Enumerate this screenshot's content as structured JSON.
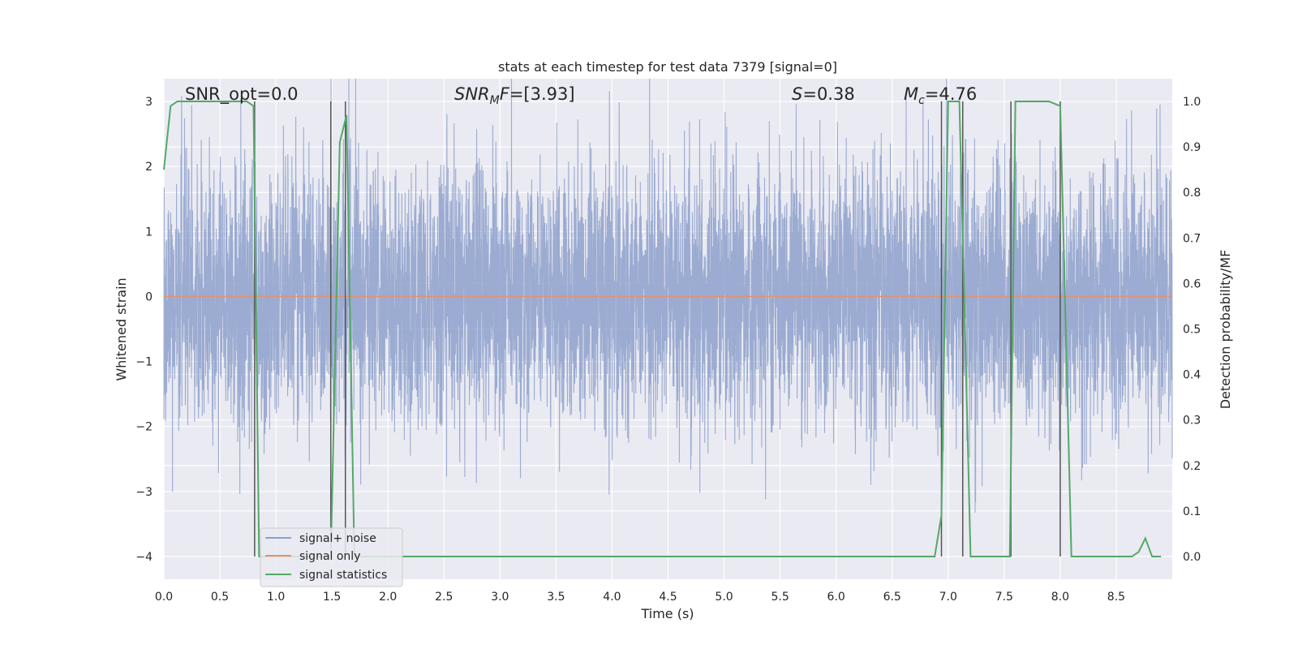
{
  "chart_data": {
    "type": "line",
    "title": "stats at each timestep for test data 7379 [signal=0]",
    "xlabel": "Time (s)",
    "ylabel_left": "Whitened strain",
    "ylabel_right": "Detection probability/MF",
    "xlim": [
      0.0,
      9.0
    ],
    "ylim_left": [
      -4.35,
      3.35
    ],
    "ylim_right": [
      -0.05,
      1.05
    ],
    "xticks": [
      "0.0",
      "0.5",
      "1.0",
      "1.5",
      "2.0",
      "2.5",
      "3.0",
      "3.5",
      "4.0",
      "4.5",
      "5.0",
      "5.5",
      "6.0",
      "6.5",
      "7.0",
      "7.5",
      "8.0",
      "8.5"
    ],
    "yticks_left": [
      "3",
      "2",
      "1",
      "0",
      "−1",
      "−2",
      "−3",
      "−4"
    ],
    "yticks_right": [
      "1.0",
      "0.9",
      "0.8",
      "0.7",
      "0.6",
      "0.5",
      "0.4",
      "0.3",
      "0.2",
      "0.1",
      "0.0"
    ],
    "grid": true,
    "legend_position": "lower-left",
    "annotations": [
      {
        "id": "snr-opt",
        "text": "SNR_opt=0.0"
      },
      {
        "id": "snr-mf",
        "prefix": "SNR",
        "sub": "M",
        "suffix": "F=[3.93]"
      },
      {
        "id": "s-value",
        "prefix": "S",
        "suffix": "=0.38"
      },
      {
        "id": "mc-value",
        "prefix": "M",
        "sub": "c",
        "suffix": "=4.76"
      }
    ],
    "series": [
      {
        "name": "signal+ noise",
        "color": "#8da0cb",
        "axis": "left",
        "description_stats": {
          "mean": 0.0,
          "std": 1.0,
          "duration": 9.0
        }
      },
      {
        "name": "signal only",
        "color": "#e5916c",
        "axis": "left",
        "x": [
          0.0,
          9.0
        ],
        "y": [
          0.0,
          0.0
        ]
      },
      {
        "name": "signal statistics",
        "color": "#55a868",
        "axis": "right",
        "x": [
          0.0,
          0.06,
          0.12,
          0.2,
          0.4,
          0.6,
          0.74,
          0.8,
          0.85,
          0.9,
          1.0,
          1.2,
          1.49,
          1.57,
          1.63,
          1.7,
          2.0,
          3.0,
          4.0,
          5.0,
          6.0,
          6.5,
          6.88,
          6.94,
          7.0,
          7.1,
          7.2,
          7.3,
          7.5,
          7.55,
          7.6,
          7.7,
          7.9,
          8.0,
          8.1,
          8.2,
          8.5,
          8.64,
          8.7,
          8.76,
          8.82,
          8.9
        ],
        "y": [
          0.85,
          0.99,
          1.0,
          1.0,
          1.0,
          1.0,
          1.0,
          0.99,
          0.0,
          0.0,
          0.0,
          0.0,
          0.0,
          0.91,
          0.97,
          0.0,
          0.0,
          0.0,
          0.0,
          0.0,
          0.0,
          0.0,
          0.0,
          0.09,
          1.0,
          1.0,
          0.0,
          0.0,
          0.0,
          0.0,
          1.0,
          1.0,
          1.0,
          0.99,
          0.0,
          0.0,
          0.0,
          0.0,
          0.01,
          0.04,
          0.0,
          0.0
        ]
      }
    ],
    "vertical_lines_x": [
      0.81,
      1.49,
      1.62,
      6.94,
      7.13,
      7.56,
      8.0
    ]
  }
}
